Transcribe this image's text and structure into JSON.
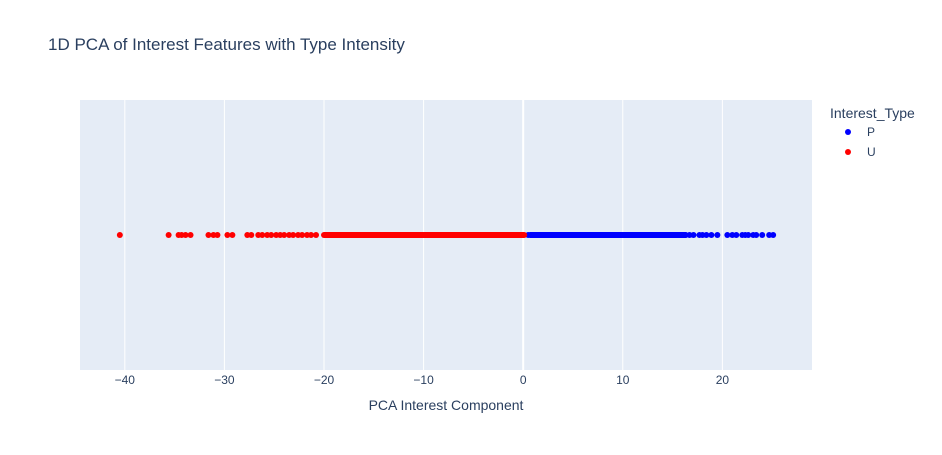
{
  "chart_data": {
    "type": "scatter",
    "title": "1D PCA of Interest Features with Type Intensity",
    "xlabel": "PCA Interest Component",
    "ylabel": "",
    "xlim": [
      -44.5,
      29
    ],
    "x_ticks": [
      -40,
      -30,
      -20,
      -10,
      0,
      10,
      20
    ],
    "x_tick_labels": [
      "−40",
      "−30",
      "−20",
      "−10",
      "0",
      "10",
      "20"
    ],
    "grid": true,
    "legend": {
      "title": "Interest_Type",
      "position": "top-right"
    },
    "series": [
      {
        "name": "P",
        "color": "#0000ff",
        "x_range_dense": [
          0.4,
          16.6
        ],
        "x": [
          0.5,
          1,
          2,
          3,
          4,
          5,
          6,
          7,
          8,
          9,
          10,
          11,
          12,
          13,
          14,
          15,
          16,
          16.3,
          16.7,
          17.1,
          17.7,
          18.0,
          18.4,
          18.9,
          19.5,
          20.5,
          21.0,
          21.4,
          22.0,
          22.3,
          22.6,
          23.1,
          23.4,
          24.0,
          24.7,
          25.1
        ]
      },
      {
        "name": "U",
        "color": "#ff0000",
        "x_range_dense": [
          -20.3,
          0.4
        ],
        "x": [
          -40.5,
          -35.6,
          -34.6,
          -34.3,
          -33.9,
          -33.4,
          -31.6,
          -31.1,
          -30.7,
          -29.7,
          -29.2,
          -27.7,
          -27.3,
          -26.6,
          -26.2,
          -25.7,
          -25.3,
          -24.8,
          -24.4,
          -24.0,
          -23.5,
          -23.1,
          -22.6,
          -22.2,
          -21.7,
          -21.3,
          -20.8
        ]
      }
    ]
  }
}
